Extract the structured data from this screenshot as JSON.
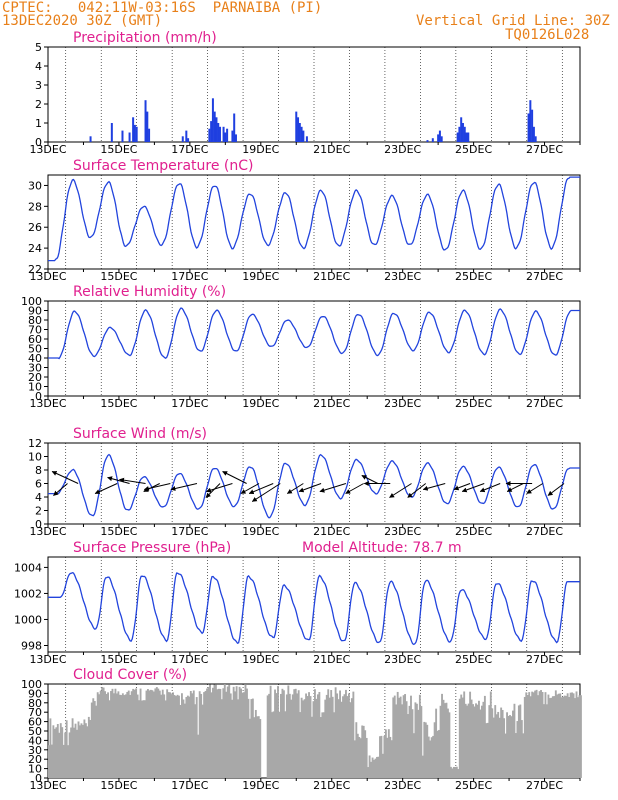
{
  "header": {
    "line1": "CPTEC:   042:11W-03:16S  PARNAIBA (PI)",
    "line2": "13DEC2020 30Z (GMT)",
    "grid_note": "Vertical Grid Line: 30Z",
    "code": "TQ0126L028"
  },
  "colors": {
    "line": "#2244dd",
    "bar": "#1f3fe0",
    "cloud": "#a8a8a8",
    "title": "#e0208f",
    "header": "#e8801a",
    "wind_vec": "#000000"
  },
  "x_axis": {
    "labels": [
      "13DEC",
      "15DEC",
      "17DEC",
      "19DEC",
      "21DEC",
      "23DEC",
      "25DEC",
      "27DEC"
    ],
    "range_days": [
      0,
      15
    ],
    "vertical_grid_days": [
      0.5,
      1.5,
      2.5,
      3.5,
      4.5,
      5.5,
      6.5,
      7.5,
      8.5,
      9.5,
      10.5,
      11.5,
      12.5,
      13.5,
      14.5
    ]
  },
  "chart_data": [
    {
      "type": "bar",
      "title": "Precipitation (mm/h)",
      "ylim": [
        0,
        5
      ],
      "yticks": [
        "0",
        "1",
        "2",
        "3",
        "4",
        "5"
      ],
      "bursts": [
        {
          "t": 1.2,
          "v": 0.3
        },
        {
          "t": 1.8,
          "v": 1.0
        },
        {
          "t": 2.1,
          "v": 0.6
        },
        {
          "t": 2.3,
          "v": 0.5
        },
        {
          "t": 2.4,
          "v": 1.3
        },
        {
          "t": 2.45,
          "v": 0.9
        },
        {
          "t": 2.5,
          "v": 0.8
        },
        {
          "t": 2.75,
          "v": 2.2
        },
        {
          "t": 2.8,
          "v": 1.6
        },
        {
          "t": 2.85,
          "v": 0.7
        },
        {
          "t": 3.8,
          "v": 0.3
        },
        {
          "t": 3.9,
          "v": 0.6
        },
        {
          "t": 3.95,
          "v": 0.2
        },
        {
          "t": 4.55,
          "v": 0.7
        },
        {
          "t": 4.6,
          "v": 1.1
        },
        {
          "t": 4.65,
          "v": 2.3
        },
        {
          "t": 4.7,
          "v": 1.6
        },
        {
          "t": 4.75,
          "v": 1.3
        },
        {
          "t": 4.8,
          "v": 1.0
        },
        {
          "t": 4.85,
          "v": 0.8
        },
        {
          "t": 4.95,
          "v": 0.8
        },
        {
          "t": 5.0,
          "v": 0.5
        },
        {
          "t": 5.05,
          "v": 0.7
        },
        {
          "t": 5.2,
          "v": 0.6
        },
        {
          "t": 5.25,
          "v": 1.5
        },
        {
          "t": 5.3,
          "v": 0.4
        },
        {
          "t": 7.0,
          "v": 1.6
        },
        {
          "t": 7.05,
          "v": 1.3
        },
        {
          "t": 7.1,
          "v": 1.0
        },
        {
          "t": 7.15,
          "v": 0.8
        },
        {
          "t": 7.2,
          "v": 0.6
        },
        {
          "t": 7.3,
          "v": 0.3
        },
        {
          "t": 10.7,
          "v": 0.1
        },
        {
          "t": 10.85,
          "v": 0.2
        },
        {
          "t": 11.0,
          "v": 0.4
        },
        {
          "t": 11.05,
          "v": 0.6
        },
        {
          "t": 11.1,
          "v": 0.3
        },
        {
          "t": 11.55,
          "v": 0.5
        },
        {
          "t": 11.6,
          "v": 0.8
        },
        {
          "t": 11.65,
          "v": 1.3
        },
        {
          "t": 11.7,
          "v": 1.0
        },
        {
          "t": 11.75,
          "v": 0.8
        },
        {
          "t": 11.8,
          "v": 0.5
        },
        {
          "t": 11.85,
          "v": 0.5
        },
        {
          "t": 13.55,
          "v": 1.5
        },
        {
          "t": 13.6,
          "v": 2.2
        },
        {
          "t": 13.65,
          "v": 1.7
        },
        {
          "t": 13.7,
          "v": 0.8
        },
        {
          "t": 13.75,
          "v": 0.3
        }
      ]
    },
    {
      "type": "line",
      "title": "Surface Temperature (nC)",
      "ylim": [
        22,
        31
      ],
      "yticks": [
        "22",
        "24",
        "26",
        "28",
        "30"
      ],
      "daily_max": [
        30.5,
        30.3,
        28.0,
        30.2,
        30.0,
        29.2,
        29.3,
        29.5,
        29.5,
        29.0,
        29.1,
        29.5,
        30.1,
        30.3,
        30.8
      ],
      "daily_min": [
        22.8,
        25.0,
        24.2,
        24.3,
        24.1,
        24.0,
        24.3,
        24.0,
        24.2,
        24.3,
        24.3,
        23.8,
        23.9,
        24.0,
        24.0
      ]
    },
    {
      "type": "line",
      "title": "Relative Humidity (%)",
      "ylim": [
        0,
        100
      ],
      "yticks": [
        "0",
        "10",
        "20",
        "30",
        "40",
        "50",
        "60",
        "70",
        "80",
        "90",
        "100"
      ],
      "daily_max": [
        89,
        72,
        90,
        92,
        90,
        86,
        80,
        84,
        86,
        87,
        88,
        90,
        91,
        89,
        90
      ],
      "daily_min": [
        40,
        42,
        43,
        40,
        47,
        47,
        52,
        51,
        45,
        43,
        48,
        46,
        44,
        44,
        43
      ]
    },
    {
      "type": "line",
      "title": "Surface Wind (m/s)",
      "ylim": [
        0,
        12
      ],
      "yticks": [
        "0",
        "2",
        "4",
        "6",
        "8",
        "10",
        "12"
      ],
      "daily_max": [
        8.0,
        10.2,
        7.0,
        7.5,
        8.3,
        8.5,
        9.0,
        10.2,
        9.5,
        9.3,
        9.0,
        8.5,
        8.4,
        8.8,
        8.3
      ],
      "daily_min": [
        4.5,
        1.2,
        2.0,
        2.5,
        2.2,
        2.6,
        1.0,
        2.8,
        3.8,
        4.5,
        4.0,
        3.0,
        3.0,
        2.5,
        2.2
      ],
      "vectors": [
        {
          "t": 0.55,
          "dx": -14,
          "dy": 12
        },
        {
          "t": 0.85,
          "dx": -26,
          "dy": -12
        },
        {
          "t": 1.95,
          "dx": -22,
          "dy": 10
        },
        {
          "t": 2.3,
          "dx": -22,
          "dy": -6
        },
        {
          "t": 2.75,
          "dx": -26,
          "dy": -4
        },
        {
          "t": 3.15,
          "dx": -16,
          "dy": 8
        },
        {
          "t": 3.45,
          "dx": -26,
          "dy": 6
        },
        {
          "t": 4.2,
          "dx": -26,
          "dy": 6
        },
        {
          "t": 4.85,
          "dx": -14,
          "dy": 14
        },
        {
          "t": 5.2,
          "dx": -26,
          "dy": 8
        },
        {
          "t": 5.6,
          "dx": -24,
          "dy": -12
        },
        {
          "t": 5.95,
          "dx": -18,
          "dy": 10
        },
        {
          "t": 6.35,
          "dx": -24,
          "dy": 10
        },
        {
          "t": 6.55,
          "dx": -28,
          "dy": 18
        },
        {
          "t": 7.2,
          "dx": -16,
          "dy": 10
        },
        {
          "t": 7.7,
          "dx": -22,
          "dy": 8
        },
        {
          "t": 8.4,
          "dx": -26,
          "dy": 8
        },
        {
          "t": 8.9,
          "dx": -18,
          "dy": 10
        },
        {
          "t": 9.3,
          "dx": -16,
          "dy": -8
        },
        {
          "t": 9.65,
          "dx": -26,
          "dy": 0
        },
        {
          "t": 10.25,
          "dx": -22,
          "dy": 14
        },
        {
          "t": 10.65,
          "dx": -18,
          "dy": 14
        },
        {
          "t": 11.2,
          "dx": -22,
          "dy": 6
        },
        {
          "t": 11.9,
          "dx": -16,
          "dy": 6
        },
        {
          "t": 12.3,
          "dx": -22,
          "dy": 8
        },
        {
          "t": 12.75,
          "dx": -20,
          "dy": 8
        },
        {
          "t": 13.4,
          "dx": -16,
          "dy": 8
        },
        {
          "t": 13.65,
          "dx": -26,
          "dy": 0
        },
        {
          "t": 13.95,
          "dx": -16,
          "dy": 10
        },
        {
          "t": 14.55,
          "dx": -16,
          "dy": 12
        }
      ]
    },
    {
      "type": "line",
      "title": "Surface Pressure (hPa)",
      "annotation": "Model Altitude: 78.7  m",
      "ylim": [
        997.5,
        1004.8
      ],
      "yticks": [
        "998",
        "1000",
        "1002",
        "1004"
      ],
      "daily_max": [
        1003.6,
        1003.3,
        1003.4,
        1003.6,
        1003.3,
        1003.3,
        1002.6,
        1003.3,
        1002.8,
        1002.9,
        1003.0,
        1002.3,
        1002.8,
        1003.0,
        1002.9
      ],
      "daily_min": [
        1001.7,
        999.3,
        998.4,
        998.4,
        999.0,
        998.2,
        998.6,
        998.4,
        998.3,
        998.2,
        998.1,
        998.3,
        998.5,
        998.4,
        998.3
      ]
    },
    {
      "type": "bar",
      "title": "Cloud Cover (%)",
      "ylim": [
        0,
        100
      ],
      "yticks": [
        "0",
        "10",
        "20",
        "30",
        "40",
        "50",
        "60",
        "70",
        "80",
        "90",
        "100"
      ],
      "segments": [
        {
          "t0": 0.0,
          "t1": 1.2,
          "lo": 20,
          "hi": 65
        },
        {
          "t0": 1.2,
          "t1": 1.35,
          "lo": 60,
          "hi": 85
        },
        {
          "t0": 1.35,
          "t1": 3.4,
          "lo": 75,
          "hi": 97
        },
        {
          "t0": 3.4,
          "t1": 3.8,
          "lo": 70,
          "hi": 92
        },
        {
          "t0": 3.8,
          "t1": 4.4,
          "lo": 20,
          "hi": 95
        },
        {
          "t0": 4.4,
          "t1": 5.6,
          "lo": 75,
          "hi": 100
        },
        {
          "t0": 5.6,
          "t1": 6.0,
          "lo": 20,
          "hi": 90
        },
        {
          "t0": 6.0,
          "t1": 6.15,
          "lo": 0,
          "hi": 0
        },
        {
          "t0": 6.15,
          "t1": 7.3,
          "lo": 55,
          "hi": 100
        },
        {
          "t0": 7.3,
          "t1": 7.7,
          "lo": 50,
          "hi": 95
        },
        {
          "t0": 7.7,
          "t1": 8.6,
          "lo": 55,
          "hi": 97
        },
        {
          "t0": 8.6,
          "t1": 9.0,
          "lo": 10,
          "hi": 60
        },
        {
          "t0": 9.0,
          "t1": 9.3,
          "lo": 5,
          "hi": 25
        },
        {
          "t0": 9.3,
          "t1": 9.7,
          "lo": 10,
          "hi": 55
        },
        {
          "t0": 9.7,
          "t1": 10.5,
          "lo": 20,
          "hi": 100
        },
        {
          "t0": 10.5,
          "t1": 10.9,
          "lo": 5,
          "hi": 60
        },
        {
          "t0": 10.9,
          "t1": 11.3,
          "lo": 30,
          "hi": 90
        },
        {
          "t0": 11.3,
          "t1": 11.55,
          "lo": 0,
          "hi": 15
        },
        {
          "t0": 11.55,
          "t1": 12.5,
          "lo": 40,
          "hi": 95
        },
        {
          "t0": 12.5,
          "t1": 13.4,
          "lo": 30,
          "hi": 80
        },
        {
          "t0": 13.4,
          "t1": 15.0,
          "lo": 70,
          "hi": 95
        }
      ]
    }
  ]
}
